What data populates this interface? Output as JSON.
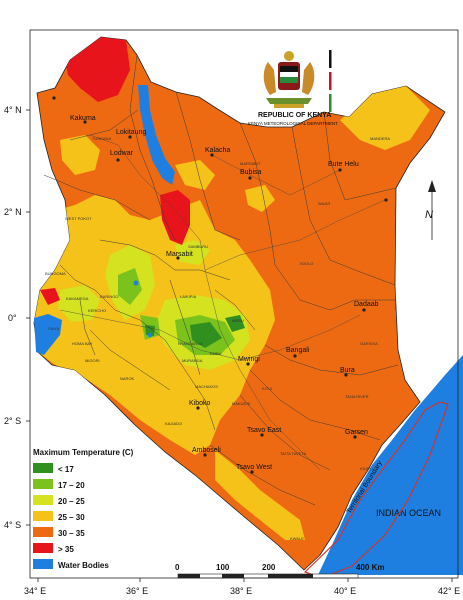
{
  "header": {
    "country": "REPUBLIC OF KENYA",
    "department": "KENYA METEOROLOGICAL DEPARTMENT"
  },
  "axes": {
    "lat_labels": [
      "4° N",
      "2° N",
      "0°",
      "2° S",
      "4° S"
    ],
    "lon_labels": [
      "34° E",
      "36° E",
      "38° E",
      "40° E",
      "42° E"
    ]
  },
  "towns": [
    {
      "id": "lokitaung",
      "label": "Lokitaung"
    },
    {
      "id": "kakuma",
      "label": "Kakuma"
    },
    {
      "id": "lodwar",
      "label": "Lodwar"
    },
    {
      "id": "kalacha",
      "label": "Kalacha"
    },
    {
      "id": "bubisa",
      "label": "Bubisa"
    },
    {
      "id": "bute-helu",
      "label": "Bute Helu"
    },
    {
      "id": "marsabit",
      "label": "Marsabit"
    },
    {
      "id": "dadaab",
      "label": "Dadaab"
    },
    {
      "id": "mwingi",
      "label": "Mwingi"
    },
    {
      "id": "bangali",
      "label": "Bangali"
    },
    {
      "id": "bura",
      "label": "Bura"
    },
    {
      "id": "garsen",
      "label": "Garsen"
    },
    {
      "id": "tsavo-east",
      "label": "Tsavo East"
    },
    {
      "id": "kiboko",
      "label": "Kiboko"
    },
    {
      "id": "amboseli",
      "label": "Amboseli"
    },
    {
      "id": "tsavo-west",
      "label": "Tsavo West"
    }
  ],
  "labels": {
    "ocean": "INDIAN OCEAN",
    "boundary": "Territorial Boundary",
    "north": "N"
  },
  "legend": {
    "title": "Maximum Temperature (C)",
    "items": [
      {
        "label": "< 17",
        "color": "#2f8f1f"
      },
      {
        "label": "17 – 20",
        "color": "#7cc21c"
      },
      {
        "label": "20 – 25",
        "color": "#d4e21f"
      },
      {
        "label": "25 – 30",
        "color": "#f5c21a"
      },
      {
        "label": "30 – 35",
        "color": "#ee6a12"
      },
      {
        "label": "> 35",
        "color": "#e8141c"
      }
    ],
    "water": {
      "label": "Water Bodies",
      "color": "#1e7fe0"
    }
  },
  "scale": {
    "ticks": [
      "0",
      "100",
      "200"
    ],
    "end_label": "400 Km"
  },
  "colors": {
    "ocean": "#1e7fe0",
    "boundary": "#d0342c",
    "road": "#3a3a3a"
  }
}
